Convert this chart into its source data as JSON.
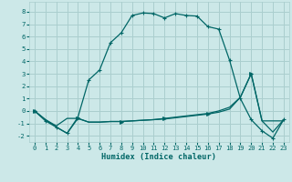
{
  "title": "",
  "xlabel": "Humidex (Indice chaleur)",
  "xlim": [
    -0.5,
    23.5
  ],
  "ylim": [
    -2.5,
    8.8
  ],
  "xticks": [
    0,
    1,
    2,
    3,
    4,
    5,
    6,
    7,
    8,
    9,
    10,
    11,
    12,
    13,
    14,
    15,
    16,
    17,
    18,
    19,
    20,
    21,
    22,
    23
  ],
  "yticks": [
    -2,
    -1,
    0,
    1,
    2,
    3,
    4,
    5,
    6,
    7,
    8
  ],
  "bg_color": "#cce8e8",
  "grid_color": "#aacece",
  "line_color": "#006666",
  "line1_x": [
    0,
    1,
    2,
    3,
    4,
    5,
    6,
    7,
    8,
    9,
    10,
    11,
    12,
    13,
    14,
    15,
    16,
    17,
    18,
    19,
    20,
    21,
    22,
    23
  ],
  "line1_y": [
    0.0,
    -0.8,
    -1.3,
    -1.8,
    -0.5,
    2.5,
    3.3,
    5.5,
    6.3,
    7.7,
    7.9,
    7.85,
    7.5,
    7.85,
    7.7,
    7.65,
    6.8,
    6.6,
    4.1,
    1.0,
    -0.7,
    -1.6,
    -2.2,
    -0.7
  ],
  "line2_x": [
    0,
    1,
    2,
    3,
    4,
    5,
    6,
    7,
    8,
    9,
    10,
    11,
    12,
    13,
    14,
    15,
    16,
    17,
    18,
    19,
    20,
    21,
    22,
    23
  ],
  "line2_y": [
    0.0,
    -0.7,
    -1.2,
    -0.6,
    -0.6,
    -0.9,
    -0.9,
    -0.85,
    -0.85,
    -0.8,
    -0.75,
    -0.7,
    -0.65,
    -0.55,
    -0.45,
    -0.35,
    -0.25,
    -0.1,
    0.15,
    1.1,
    3.0,
    -0.8,
    -0.8,
    -0.8
  ],
  "line3_x": [
    0,
    1,
    2,
    3,
    4,
    5,
    6,
    7,
    8,
    9,
    10,
    11,
    12,
    13,
    14,
    15,
    16,
    17,
    18,
    19,
    20,
    21,
    22,
    23
  ],
  "line3_y": [
    0.0,
    -0.7,
    -1.3,
    -1.8,
    -0.6,
    -0.9,
    -0.9,
    -0.85,
    -0.85,
    -0.8,
    -0.75,
    -0.7,
    -0.6,
    -0.5,
    -0.4,
    -0.3,
    -0.2,
    0.0,
    0.3,
    1.1,
    3.0,
    -0.8,
    -1.7,
    -0.7
  ]
}
